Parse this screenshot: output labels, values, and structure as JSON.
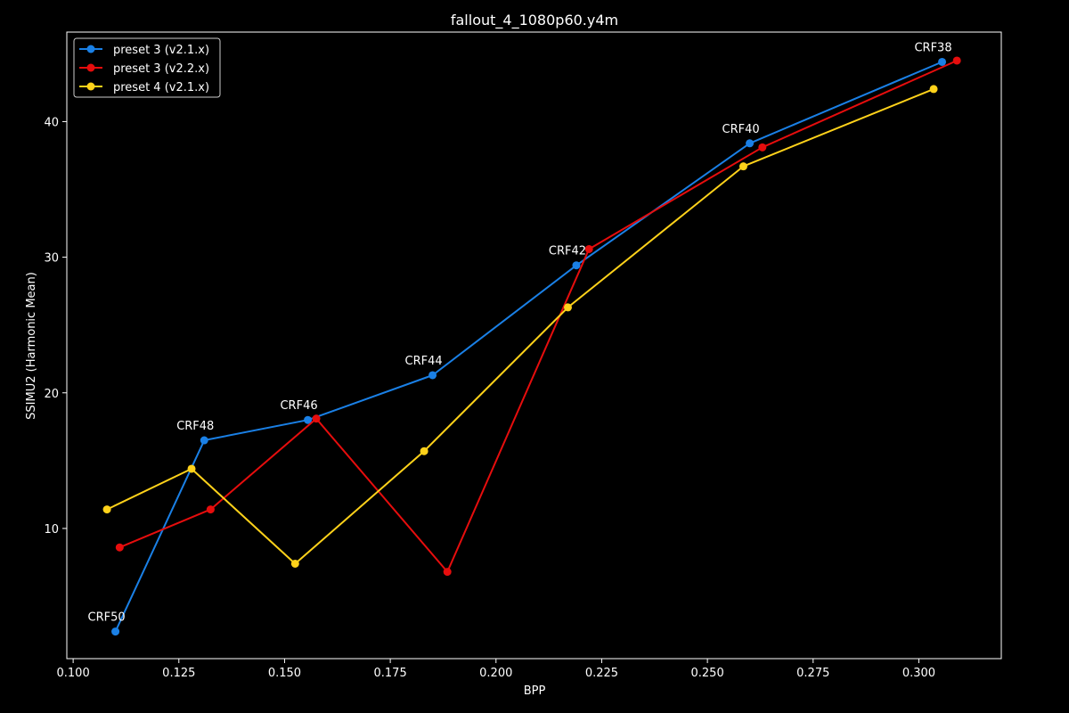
{
  "chart_data": {
    "type": "line",
    "title": "fallout_4_1080p60.y4m",
    "xlabel": "BPP",
    "ylabel": "SSIMU2 (Harmonic Mean)",
    "xlim": [
      0.0985,
      0.3195
    ],
    "ylim": [
      0.4,
      46.6
    ],
    "xticks": [
      0.1,
      0.125,
      0.15,
      0.175,
      0.2,
      0.225,
      0.25,
      0.275,
      0.3
    ],
    "xtick_labels": [
      "0.100",
      "0.125",
      "0.150",
      "0.175",
      "0.200",
      "0.225",
      "0.250",
      "0.275",
      "0.300"
    ],
    "yticks": [
      10,
      20,
      30,
      40
    ],
    "ytick_labels": [
      "10",
      "20",
      "30",
      "40"
    ],
    "grid": false,
    "legend_position": "top-left",
    "series": [
      {
        "name": "preset 3 (v2.1.x)",
        "color": "#1a80e6",
        "x": [
          0.11,
          0.131,
          0.1555,
          0.185,
          0.219,
          0.26,
          0.3055
        ],
        "y": [
          2.4,
          16.5,
          18.0,
          21.3,
          29.4,
          38.4,
          44.4
        ]
      },
      {
        "name": "preset 3 (v2.2.x)",
        "color": "#e60d0d",
        "x": [
          0.111,
          0.1325,
          0.1575,
          0.1885,
          0.222,
          0.263,
          0.309
        ],
        "y": [
          8.6,
          11.4,
          18.1,
          6.8,
          30.6,
          38.1,
          44.5
        ]
      },
      {
        "name": "preset 4 (v2.1.x)",
        "color": "#ffd21a",
        "x": [
          0.108,
          0.128,
          0.1525,
          0.183,
          0.217,
          0.2585,
          0.3035
        ],
        "y": [
          11.4,
          14.4,
          7.4,
          15.7,
          26.3,
          36.7,
          42.4
        ]
      }
    ],
    "annotations": [
      {
        "text": "CRF50",
        "x": 0.11,
        "y": 2.4
      },
      {
        "text": "CRF48",
        "x": 0.131,
        "y": 16.5
      },
      {
        "text": "CRF46",
        "x": 0.1555,
        "y": 18.0
      },
      {
        "text": "CRF44",
        "x": 0.185,
        "y": 21.3
      },
      {
        "text": "CRF42",
        "x": 0.219,
        "y": 29.4
      },
      {
        "text": "CRF40",
        "x": 0.26,
        "y": 38.4
      },
      {
        "text": "CRF38",
        "x": 0.3055,
        "y": 44.4
      }
    ]
  }
}
